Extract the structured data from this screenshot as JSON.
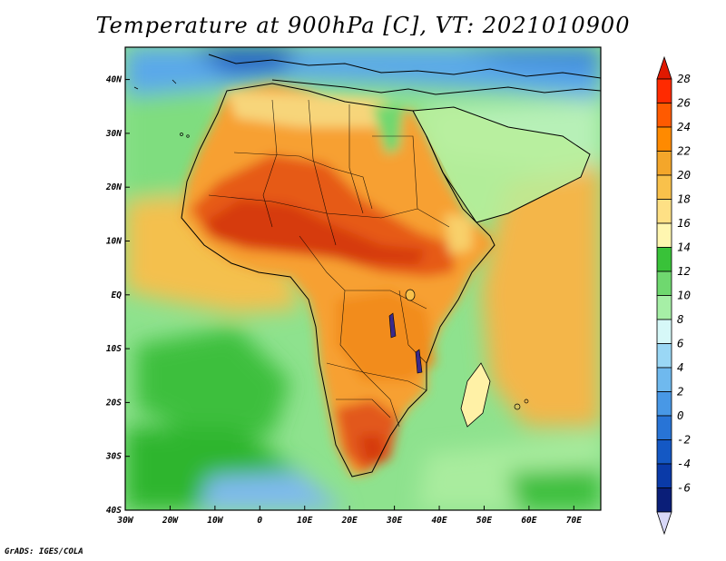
{
  "title": "Temperature at 900hPa [C], VT: 2021010900",
  "credit": "GrADS: IGES/COLA",
  "map": {
    "lon_range": [
      -30,
      76
    ],
    "lat_range": [
      -40,
      46
    ],
    "x_ticks": [
      {
        "lon": -30,
        "label": "30W"
      },
      {
        "lon": -20,
        "label": "20W"
      },
      {
        "lon": -10,
        "label": "10W"
      },
      {
        "lon": 0,
        "label": "0"
      },
      {
        "lon": 10,
        "label": "10E"
      },
      {
        "lon": 20,
        "label": "20E"
      },
      {
        "lon": 30,
        "label": "30E"
      },
      {
        "lon": 40,
        "label": "40E"
      },
      {
        "lon": 50,
        "label": "50E"
      },
      {
        "lon": 60,
        "label": "60E"
      },
      {
        "lon": 70,
        "label": "70E"
      }
    ],
    "y_ticks": [
      {
        "lat": 40,
        "label": "40N"
      },
      {
        "lat": 30,
        "label": "30N"
      },
      {
        "lat": 20,
        "label": "20N"
      },
      {
        "lat": 10,
        "label": "10N"
      },
      {
        "lat": 0,
        "label": "EQ"
      },
      {
        "lat": -10,
        "label": "10S"
      },
      {
        "lat": -20,
        "label": "20S"
      },
      {
        "lat": -30,
        "label": "30S"
      },
      {
        "lat": -40,
        "label": "40S"
      }
    ],
    "background_color": "#8ee28e"
  },
  "colorbar": {
    "labels": [
      "28",
      "26",
      "24",
      "22",
      "20",
      "18",
      "16",
      "14",
      "12",
      "10",
      "8",
      "6",
      "4",
      "2",
      "0",
      "-2",
      "-4",
      "-6"
    ],
    "colors": [
      "#ff2a00",
      "#ff5a00",
      "#ff8a00",
      "#f4a62a",
      "#f9c14b",
      "#fee085",
      "#fff6b0",
      "#39c239",
      "#6fd86f",
      "#a6efa6",
      "#d6f8f8",
      "#9ad7f5",
      "#6fb9ee",
      "#4898e6",
      "#2874d6",
      "#1458c4",
      "#0a3aa8",
      "#0a1e78"
    ],
    "top_arrow_color": "#e01800",
    "bottom_arrow_color": "#d8d8f8"
  }
}
